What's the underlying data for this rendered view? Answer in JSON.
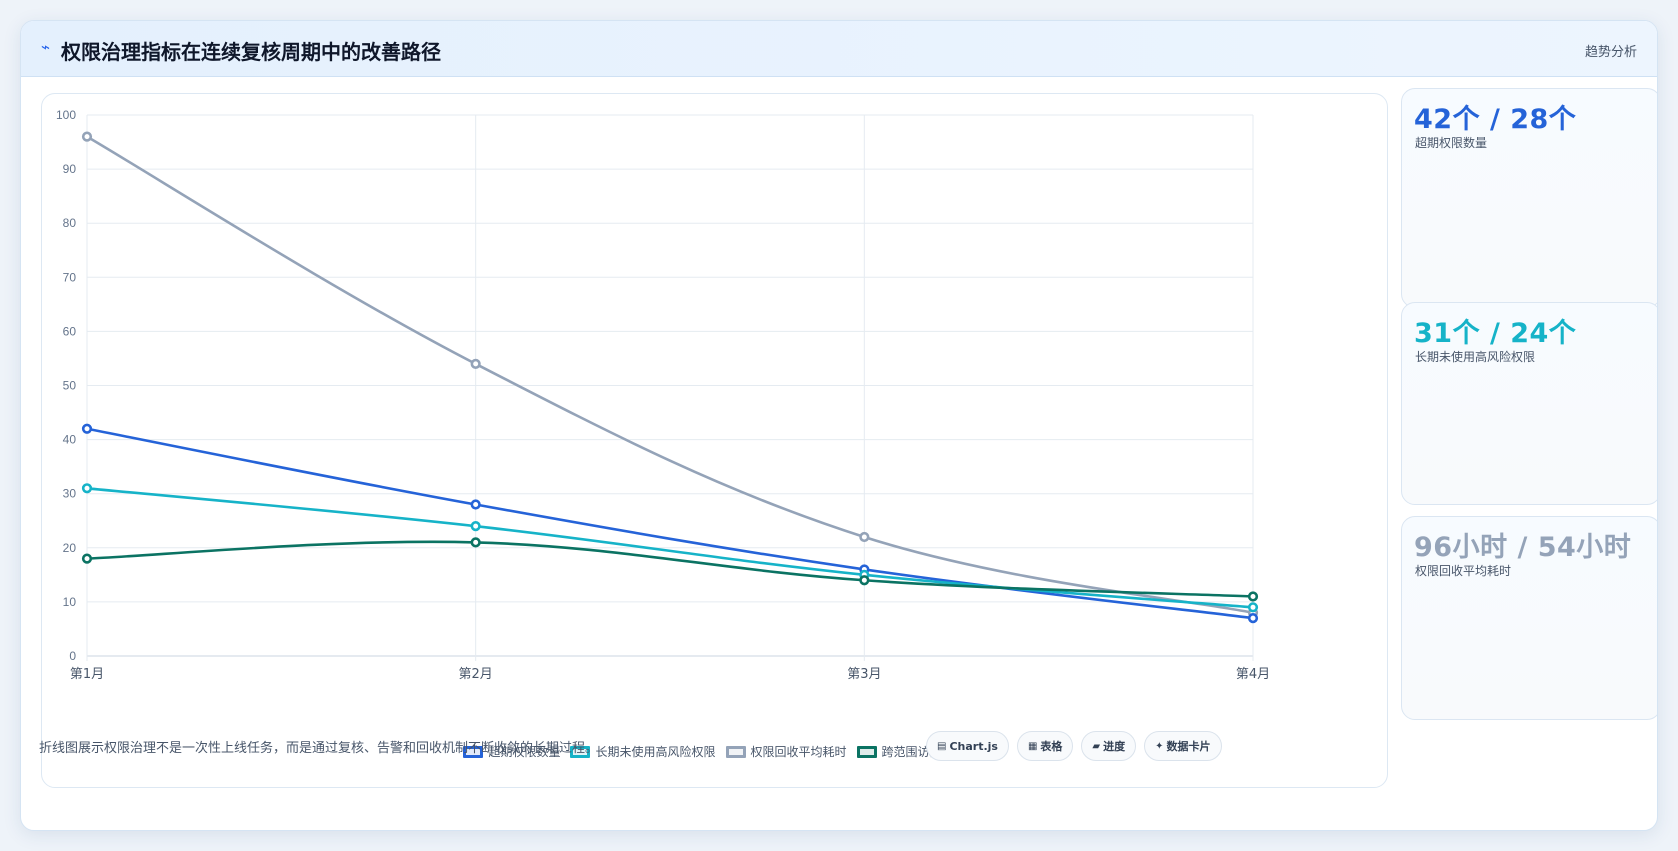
{
  "header": {
    "icon": "trend-line-icon",
    "title": "权限治理指标在连续复核周期中的改善路径",
    "tag": "趋势分析"
  },
  "chart_data": {
    "type": "line",
    "categories": [
      "第1月",
      "第2月",
      "第3月",
      "第4月"
    ],
    "ylim": [
      0,
      100
    ],
    "yticks": [
      0,
      10,
      20,
      30,
      40,
      50,
      60,
      70,
      80,
      90,
      100
    ],
    "grid": true,
    "legend_position": "bottom",
    "series": [
      {
        "name": "超期权限数量",
        "color": "#2563d8",
        "values": [
          42,
          28,
          16,
          7
        ]
      },
      {
        "name": "长期未使用高风险权限",
        "color": "#16b3c8",
        "values": [
          31,
          24,
          15,
          9
        ]
      },
      {
        "name": "权限回收平均耗时",
        "color": "#94a3b8",
        "values": [
          96,
          54,
          22,
          8
        ]
      },
      {
        "name": "跨范围访问告警",
        "color": "#0b7363",
        "values": [
          18,
          21,
          14,
          11
        ]
      }
    ]
  },
  "stats": [
    {
      "value": "42个 / 28个",
      "label": "超期权限数量",
      "color": "#2563d8"
    },
    {
      "value": "31个 / 24个",
      "label": "长期未使用高风险权限",
      "color": "#16b3c8"
    },
    {
      "value": "96小时 / 54小时",
      "label": "权限回收平均耗时",
      "color": "#94a3b8"
    }
  ],
  "footer": {
    "note": "折线图展示权限治理不是一次性上线任务，而是通过复核、告警和回收机制不断收敛的长期过程。",
    "chips": [
      {
        "icon": "chart-icon",
        "glyph": "▤",
        "label": "Chart.js"
      },
      {
        "icon": "table-icon",
        "glyph": "▦",
        "label": "表格"
      },
      {
        "icon": "progress-icon",
        "glyph": "▰",
        "label": "进度"
      },
      {
        "icon": "card-icon",
        "glyph": "✦",
        "label": "数据卡片"
      }
    ]
  }
}
